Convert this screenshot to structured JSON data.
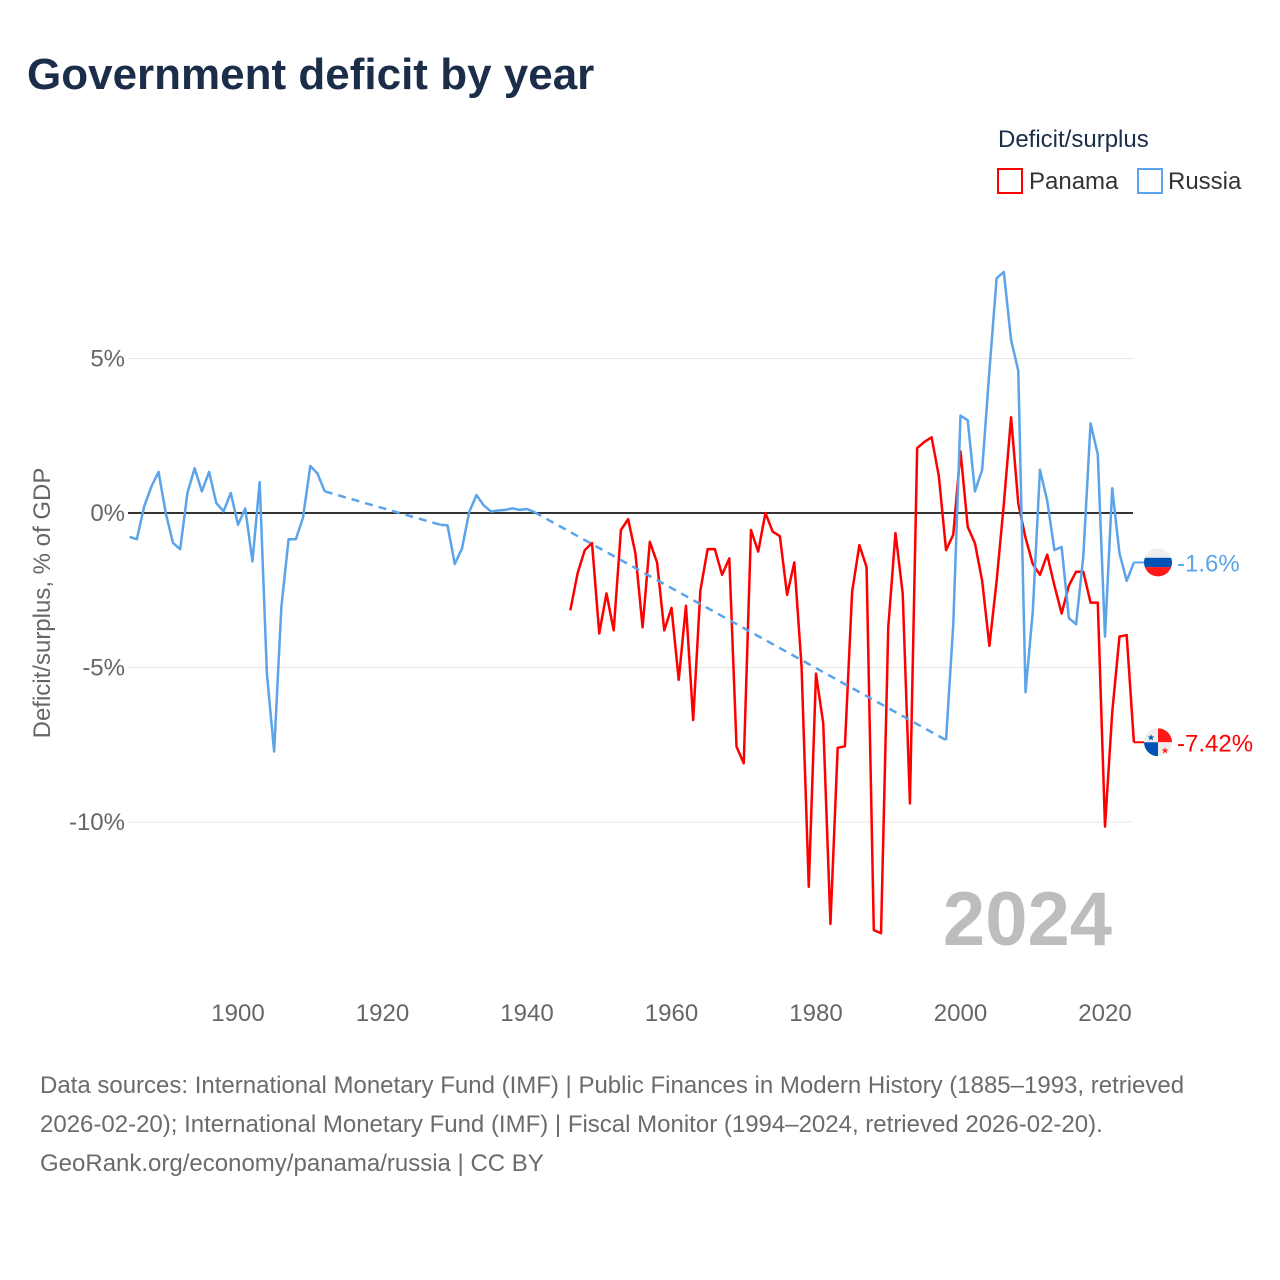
{
  "title": "Government deficit by year",
  "legend": {
    "title": "Deficit/surplus",
    "items": [
      {
        "name": "Panama",
        "color": "#ff0000"
      },
      {
        "name": "Russia",
        "color": "#5ba4ea"
      }
    ]
  },
  "year_label": "2024",
  "footer": {
    "sources": "Data sources: International Monetary Fund (IMF) | Public Finances in Modern History (1885–1993, retrieved 2026-02-20); International Monetary Fund (IMF) | Fiscal Monitor (1994–2024, retrieved 2026-02-20).",
    "credit": "GeoRank.org/economy/panama/russia | CC BY"
  },
  "chart_data": {
    "type": "line",
    "title": "Government deficit by year",
    "xlabel": "",
    "ylabel": "Deficit/surplus, % of GDP",
    "xlim": [
      1884,
      2024
    ],
    "ylim": [
      -14,
      8
    ],
    "x_ticks": [
      {
        "value": 1900,
        "label": "1900"
      },
      {
        "value": 1920,
        "label": "1920"
      },
      {
        "value": 1940,
        "label": "1940"
      },
      {
        "value": 1960,
        "label": "1960"
      },
      {
        "value": 1980,
        "label": "1980"
      },
      {
        "value": 2000,
        "label": "2000"
      },
      {
        "value": 2020,
        "label": "2020"
      }
    ],
    "y_ticks": [
      {
        "value": 5,
        "label": "5%"
      },
      {
        "value": 0,
        "label": "0%"
      },
      {
        "value": -5,
        "label": "-5%"
      },
      {
        "value": -10,
        "label": "-10%"
      }
    ],
    "grid": true,
    "legend_position": "top-right",
    "series": [
      {
        "name": "Panama",
        "color": "#ff0000",
        "end_label": "-7.42%",
        "flag": "panama",
        "points": [
          [
            1946,
            -3.15
          ],
          [
            1947,
            -1.95
          ],
          [
            1948,
            -1.2
          ],
          [
            1949,
            -0.97
          ],
          [
            1950,
            -3.9
          ],
          [
            1951,
            -2.6
          ],
          [
            1952,
            -3.8
          ],
          [
            1953,
            -0.55
          ],
          [
            1954,
            -0.2
          ],
          [
            1955,
            -1.3
          ],
          [
            1956,
            -3.7
          ],
          [
            1957,
            -0.93
          ],
          [
            1958,
            -1.6
          ],
          [
            1959,
            -3.8
          ],
          [
            1960,
            -3.07
          ],
          [
            1961,
            -5.4
          ],
          [
            1962,
            -3.0
          ],
          [
            1963,
            -6.7
          ],
          [
            1964,
            -2.5
          ],
          [
            1965,
            -1.17
          ],
          [
            1966,
            -1.17
          ],
          [
            1967,
            -2.0
          ],
          [
            1968,
            -1.47
          ],
          [
            1969,
            -7.56
          ],
          [
            1970,
            -8.1
          ],
          [
            1971,
            -0.55
          ],
          [
            1972,
            -1.25
          ],
          [
            1973,
            0.0
          ],
          [
            1974,
            -0.6
          ],
          [
            1975,
            -0.75
          ],
          [
            1976,
            -2.65
          ],
          [
            1977,
            -1.6
          ],
          [
            1978,
            -4.97
          ],
          [
            1979,
            -12.1
          ],
          [
            1980,
            -5.2
          ],
          [
            1981,
            -6.8
          ],
          [
            1982,
            -13.3
          ],
          [
            1983,
            -7.6
          ],
          [
            1984,
            -7.55
          ],
          [
            1985,
            -2.55
          ],
          [
            1986,
            -1.04
          ],
          [
            1987,
            -1.75
          ],
          [
            1988,
            -13.5
          ],
          [
            1989,
            -13.6
          ],
          [
            1990,
            -3.7
          ],
          [
            1991,
            -0.65
          ],
          [
            1992,
            -2.6
          ],
          [
            1993,
            -9.4
          ],
          [
            1994,
            2.1
          ],
          [
            1995,
            2.3
          ],
          [
            1996,
            2.45
          ],
          [
            1997,
            1.2
          ],
          [
            1998,
            -1.2
          ],
          [
            1999,
            -0.7
          ],
          [
            2000,
            2.0
          ],
          [
            2001,
            -0.45
          ],
          [
            2002,
            -0.98
          ],
          [
            2003,
            -2.2
          ],
          [
            2004,
            -4.3
          ],
          [
            2005,
            -2.2
          ],
          [
            2006,
            0.3
          ],
          [
            2007,
            3.1
          ],
          [
            2008,
            0.3
          ],
          [
            2009,
            -0.8
          ],
          [
            2010,
            -1.65
          ],
          [
            2011,
            -2.0
          ],
          [
            2012,
            -1.35
          ],
          [
            2013,
            -2.35
          ],
          [
            2014,
            -3.25
          ],
          [
            2015,
            -2.35
          ],
          [
            2016,
            -1.9
          ],
          [
            2017,
            -1.9
          ],
          [
            2018,
            -2.9
          ],
          [
            2019,
            -2.9
          ],
          [
            2020,
            -10.15
          ],
          [
            2021,
            -6.45
          ],
          [
            2022,
            -4.0
          ],
          [
            2023,
            -3.95
          ],
          [
            2024,
            -7.42
          ]
        ]
      },
      {
        "name": "Russia",
        "color": "#5ba4ea",
        "end_label": "-1.6%",
        "flag": "russia",
        "points": [
          [
            1885,
            -0.77
          ],
          [
            1886,
            -0.85
          ],
          [
            1887,
            0.2
          ],
          [
            1888,
            0.85
          ],
          [
            1889,
            1.33
          ],
          [
            1890,
            0.0
          ],
          [
            1891,
            -0.97
          ],
          [
            1892,
            -1.17
          ],
          [
            1893,
            0.65
          ],
          [
            1894,
            1.45
          ],
          [
            1895,
            0.7
          ],
          [
            1896,
            1.33
          ],
          [
            1897,
            0.32
          ],
          [
            1898,
            0.05
          ],
          [
            1899,
            0.65
          ],
          [
            1900,
            -0.38
          ],
          [
            1901,
            0.15
          ],
          [
            1902,
            -1.57
          ],
          [
            1903,
            1.0
          ],
          [
            1904,
            -5.2
          ],
          [
            1905,
            -7.72
          ],
          [
            1906,
            -3.05
          ],
          [
            1907,
            -0.85
          ],
          [
            1908,
            -0.85
          ],
          [
            1909,
            -0.15
          ],
          [
            1910,
            1.52
          ],
          [
            1911,
            1.28
          ],
          [
            1912,
            0.7
          ],
          [
            1928,
            -0.38
          ],
          [
            1929,
            -0.4
          ],
          [
            1930,
            -1.65
          ],
          [
            1931,
            -1.15
          ],
          [
            1932,
            0.03
          ],
          [
            1933,
            0.58
          ],
          [
            1934,
            0.25
          ],
          [
            1935,
            0.05
          ],
          [
            1936,
            0.08
          ],
          [
            1937,
            0.1
          ],
          [
            1938,
            0.15
          ],
          [
            1939,
            0.1
          ],
          [
            1940,
            0.13
          ],
          [
            1941,
            0.03
          ],
          [
            1998,
            -7.35
          ],
          [
            1999,
            -3.6
          ],
          [
            2000,
            3.15
          ],
          [
            2001,
            3.0
          ],
          [
            2002,
            0.7
          ],
          [
            2003,
            1.4
          ],
          [
            2004,
            4.6
          ],
          [
            2005,
            7.6
          ],
          [
            2006,
            7.8
          ],
          [
            2007,
            5.6
          ],
          [
            2008,
            4.6
          ],
          [
            2009,
            -5.8
          ],
          [
            2010,
            -3.2
          ],
          [
            2011,
            1.4
          ],
          [
            2012,
            0.4
          ],
          [
            2013,
            -1.2
          ],
          [
            2014,
            -1.1
          ],
          [
            2015,
            -3.4
          ],
          [
            2016,
            -3.6
          ],
          [
            2017,
            -1.4
          ],
          [
            2018,
            2.9
          ],
          [
            2019,
            1.9
          ],
          [
            2020,
            -4.0
          ],
          [
            2021,
            0.8
          ],
          [
            2022,
            -1.3
          ],
          [
            2023,
            -2.2
          ],
          [
            2024,
            -1.6
          ]
        ]
      }
    ]
  }
}
